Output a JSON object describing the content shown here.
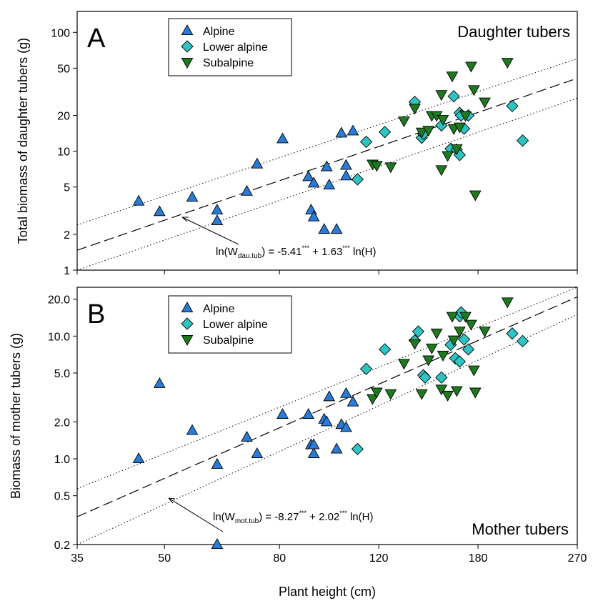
{
  "colors": {
    "alpine": "#2b7bd6",
    "lower_alpine": "#2ec4c4",
    "subalpine": "#1e7a1e",
    "marker_edge": "#000000",
    "axis": "#000000"
  },
  "figure": {
    "xlabel": "Plant height (cm)",
    "xscale": "log",
    "xlim": [
      35,
      270
    ],
    "x_ticks": [
      35,
      50,
      80,
      120,
      180,
      270
    ],
    "x_tick_labels": [
      "35",
      "50",
      "80",
      "120",
      "180",
      "270"
    ]
  },
  "chart_data": [
    {
      "type": "scatter",
      "panel_letter": "A",
      "title": "Daughter tubers",
      "xlabel": "",
      "ylabel": "Total biomass of daughter tubers (g)",
      "xscale": "log",
      "yscale": "log",
      "xlim": [
        35,
        270
      ],
      "ylim": [
        1,
        150
      ],
      "y_ticks": [
        1,
        2,
        5,
        10,
        20,
        50,
        100
      ],
      "y_tick_labels": [
        "1",
        "2",
        "5",
        "10",
        "20",
        "50",
        "100"
      ],
      "legend_position": "top-left",
      "legend": [
        "Alpine",
        "Lower alpine",
        "Subalpine"
      ],
      "series": [
        {
          "name": "Alpine",
          "marker": "triangle-up",
          "points": [
            [
              45,
              3.8
            ],
            [
              49,
              3.1
            ],
            [
              56,
              4.1
            ],
            [
              62,
              3.2
            ],
            [
              62,
              2.6
            ],
            [
              70,
              4.6
            ],
            [
              73,
              7.8
            ],
            [
              81,
              12.7
            ],
            [
              90,
              6.1
            ],
            [
              91,
              3.2
            ],
            [
              92,
              2.8
            ],
            [
              92,
              5.4
            ],
            [
              96,
              2.2
            ],
            [
              97,
              7.4
            ],
            [
              98,
              5.2
            ],
            [
              101,
              2.2
            ],
            [
              103,
              14.2
            ],
            [
              105,
              7.6
            ],
            [
              105,
              6.2
            ],
            [
              108,
              14.8
            ]
          ]
        },
        {
          "name": "Lower alpine",
          "marker": "diamond",
          "points": [
            [
              110,
              5.8
            ],
            [
              114,
              12
            ],
            [
              123,
              14.5
            ],
            [
              139,
              26
            ],
            [
              143,
              13
            ],
            [
              144,
              14
            ],
            [
              155,
              16.5
            ],
            [
              161,
              10.5
            ],
            [
              163,
              29
            ],
            [
              165,
              10.3
            ],
            [
              167,
              9.3
            ],
            [
              167,
              21
            ],
            [
              168,
              20
            ],
            [
              170,
              15.5
            ],
            [
              173,
              20
            ],
            [
              207,
              24
            ],
            [
              216,
              12.3
            ]
          ]
        },
        {
          "name": "Subalpine",
          "marker": "triangle-down",
          "points": [
            [
              117,
              7.8
            ],
            [
              119,
              7.6
            ],
            [
              126,
              7.4
            ],
            [
              133,
              18
            ],
            [
              139,
              23
            ],
            [
              143,
              14.5
            ],
            [
              147,
              15
            ],
            [
              149,
              20
            ],
            [
              152,
              20
            ],
            [
              155,
              30
            ],
            [
              156,
              18.5
            ],
            [
              155,
              7
            ],
            [
              159,
              9.2
            ],
            [
              162,
              43
            ],
            [
              163,
              15.5
            ],
            [
              165,
              10.5
            ],
            [
              167,
              16
            ],
            [
              171,
              20
            ],
            [
              175,
              52
            ],
            [
              177,
              33
            ],
            [
              178,
              4.3
            ],
            [
              185,
              26
            ],
            [
              203,
              56
            ]
          ]
        }
      ],
      "regression": {
        "equation_prefix": "ln(W",
        "equation_subscript": "dau.tub",
        "equation_mid": ") = -5.41",
        "equation_sig1": "***",
        "equation_plus": " + 1.63",
        "equation_sig2": "***",
        "equation_suffix": " ln(H)",
        "intercept": -5.41,
        "slope": 1.63,
        "ci_lower_at_ends": [
          0.72,
          28
        ],
        "ci_upper_at_ends": [
          2.4,
          60
        ]
      }
    },
    {
      "type": "scatter",
      "panel_letter": "B",
      "title": "Mother tubers",
      "xlabel": "Plant height (cm)",
      "ylabel": "Biomass of mother tubers (g)",
      "xscale": "log",
      "yscale": "log",
      "xlim": [
        35,
        270
      ],
      "ylim": [
        0.2,
        25
      ],
      "y_ticks": [
        0.2,
        0.5,
        1.0,
        2.0,
        5.0,
        10.0,
        20.0
      ],
      "y_tick_labels": [
        "0.2",
        "0.5",
        "1.0",
        "2.0",
        "5.0",
        "10.0",
        "20.0"
      ],
      "legend_position": "top-left",
      "legend": [
        "Alpine",
        "Lower alpine",
        "Subalpine"
      ],
      "series": [
        {
          "name": "Alpine",
          "marker": "triangle-up",
          "points": [
            [
              45,
              1.0
            ],
            [
              49,
              4.1
            ],
            [
              56,
              1.7
            ],
            [
              62,
              0.9
            ],
            [
              62,
              0.2
            ],
            [
              70,
              1.5
            ],
            [
              73,
              1.1
            ],
            [
              81,
              2.3
            ],
            [
              90,
              2.3
            ],
            [
              91,
              1.3
            ],
            [
              92,
              1.1
            ],
            [
              92,
              1.3
            ],
            [
              96,
              2.1
            ],
            [
              97,
              2.0
            ],
            [
              98,
              3.2
            ],
            [
              101,
              1.2
            ],
            [
              103,
              1.9
            ],
            [
              105,
              1.8
            ],
            [
              105,
              3.4
            ],
            [
              108,
              2.9
            ]
          ]
        },
        {
          "name": "Lower alpine",
          "marker": "diamond",
          "points": [
            [
              110,
              1.2
            ],
            [
              114,
              5.4
            ],
            [
              123,
              7.8
            ],
            [
              139,
              9.2
            ],
            [
              141,
              10.9
            ],
            [
              144,
              4.8
            ],
            [
              145,
              4.6
            ],
            [
              155,
              4.6
            ],
            [
              161,
              8.5
            ],
            [
              164,
              6.6
            ],
            [
              167,
              6.2
            ],
            [
              167,
              14.5
            ],
            [
              168,
              15.6
            ],
            [
              170,
              9.4
            ],
            [
              173,
              7.8
            ],
            [
              207,
              10.5
            ],
            [
              216,
              9.1
            ]
          ]
        },
        {
          "name": "Subalpine",
          "marker": "triangle-down",
          "points": [
            [
              117,
              3.1
            ],
            [
              119,
              3.5
            ],
            [
              126,
              3.4
            ],
            [
              133,
              6
            ],
            [
              139,
              8.7
            ],
            [
              143,
              3.4
            ],
            [
              147,
              6.4
            ],
            [
              149,
              8
            ],
            [
              152,
              10.6
            ],
            [
              155,
              3.7
            ],
            [
              156,
              7
            ],
            [
              159,
              3.3
            ],
            [
              162,
              14.5
            ],
            [
              163,
              9.3
            ],
            [
              165,
              3.6
            ],
            [
              167,
              11
            ],
            [
              171,
              14.5
            ],
            [
              175,
              12.5
            ],
            [
              177,
              5.3
            ],
            [
              178,
              3.5
            ],
            [
              185,
              11
            ],
            [
              203,
              19
            ]
          ]
        }
      ],
      "regression": {
        "equation_prefix": "ln(W",
        "equation_subscript": "mot.tub",
        "equation_mid": ") = -8.27",
        "equation_sig1": "***",
        "equation_plus": " + 2.02",
        "equation_sig2": "***",
        "equation_suffix": " ln(H)",
        "intercept": -8.27,
        "slope": 2.02,
        "ci_lower_at_ends": [
          0.2,
          15
        ],
        "ci_upper_at_ends": [
          0.57,
          26
        ]
      }
    }
  ]
}
